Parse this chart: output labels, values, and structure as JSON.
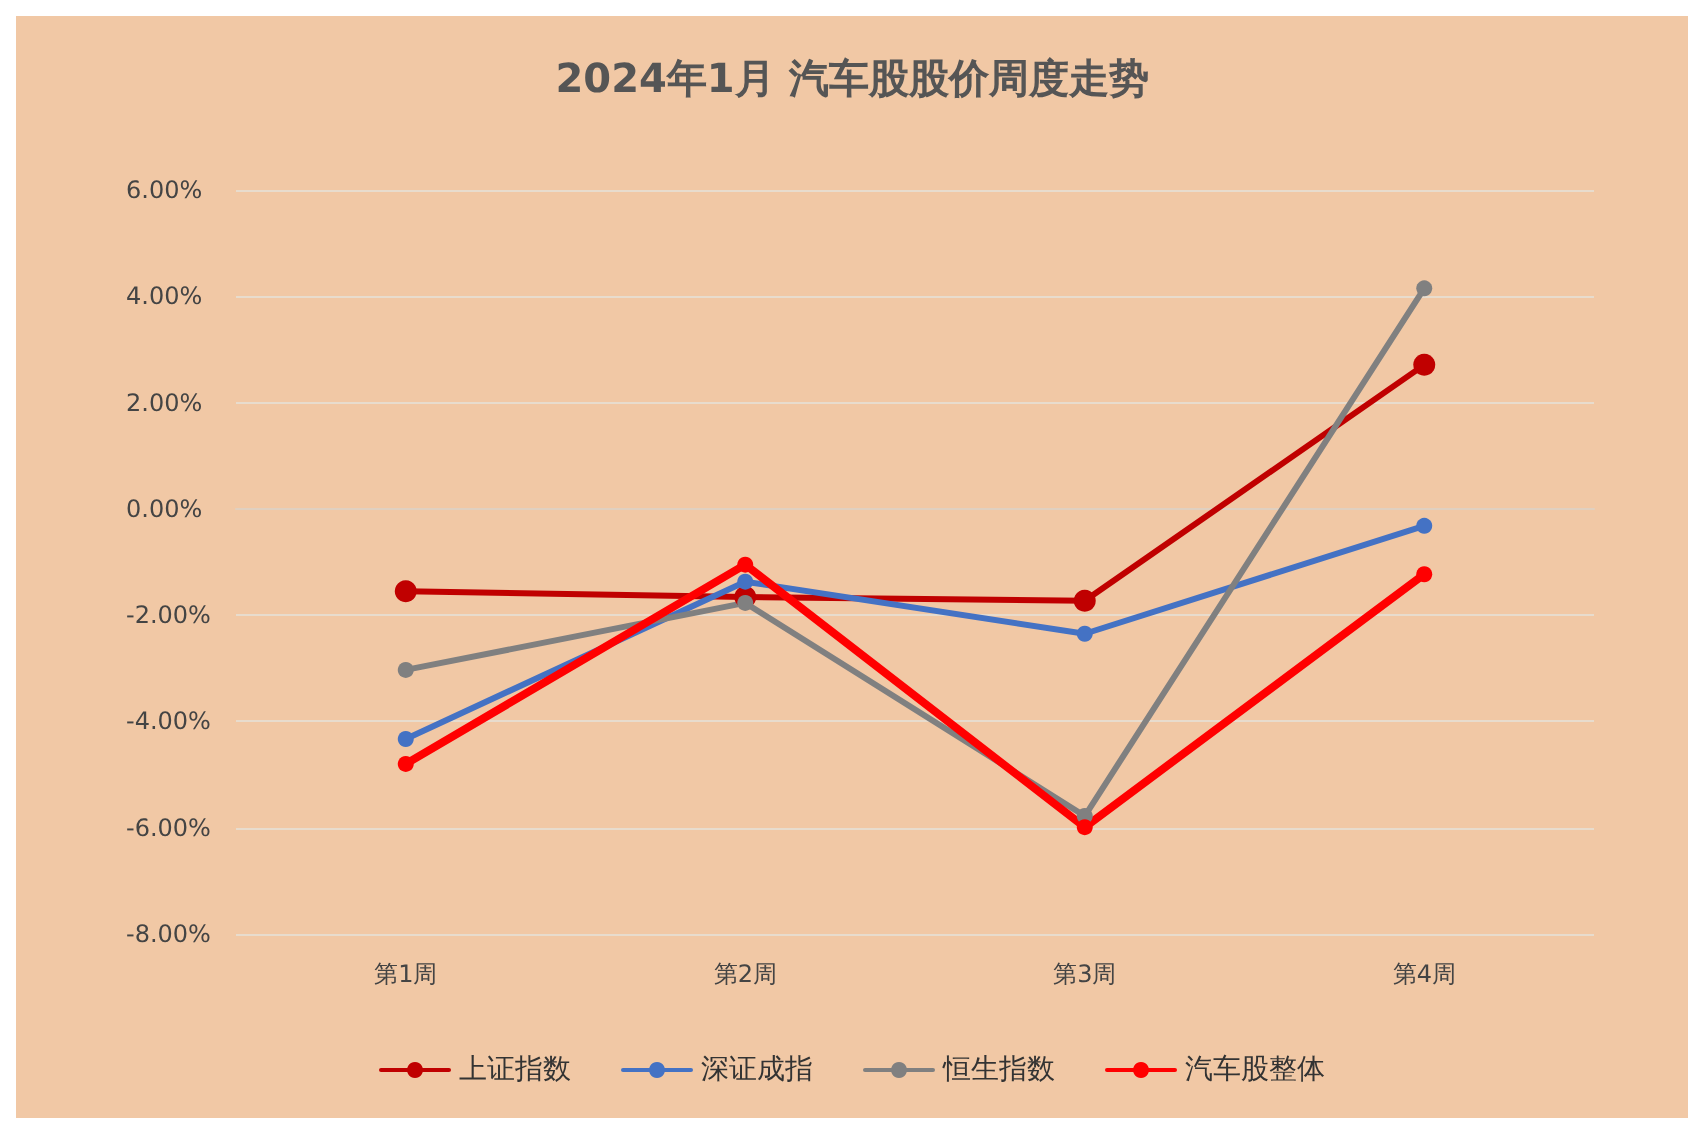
{
  "chart_data": {
    "type": "line",
    "title": "2024年1月 汽车股股价周度走势",
    "categories": [
      "第1周",
      "第2周",
      "第3周",
      "第4周"
    ],
    "series": [
      {
        "name": "上证指数",
        "color": "#c00000",
        "values": [
          -1.55,
          -1.66,
          -1.73,
          2.71
        ]
      },
      {
        "name": "深证成指",
        "color": "#4472c4",
        "values": [
          -4.33,
          -1.37,
          -2.35,
          -0.32
        ]
      },
      {
        "name": "恒生指数",
        "color": "#808080",
        "values": [
          -3.03,
          -1.77,
          -5.78,
          4.15
        ]
      },
      {
        "name": "汽车股整体",
        "color": "#ff0000",
        "values": [
          -4.8,
          -1.05,
          -5.99,
          -1.23
        ]
      }
    ],
    "ylim": [
      -8,
      6
    ],
    "yticks": [
      {
        "value": -8,
        "label": "-8.00%"
      },
      {
        "value": -6,
        "label": "-6.00%"
      },
      {
        "value": -4,
        "label": "-4.00%"
      },
      {
        "value": -2,
        "label": "-2.00%"
      },
      {
        "value": 0,
        "label": "0.00%"
      },
      {
        "value": 2,
        "label": "2.00%"
      },
      {
        "value": 4,
        "label": "4.00%"
      },
      {
        "value": 6,
        "label": "6.00%"
      }
    ],
    "grid": "y",
    "legend": "bottom",
    "marker": "circle",
    "line_style": "solid"
  }
}
